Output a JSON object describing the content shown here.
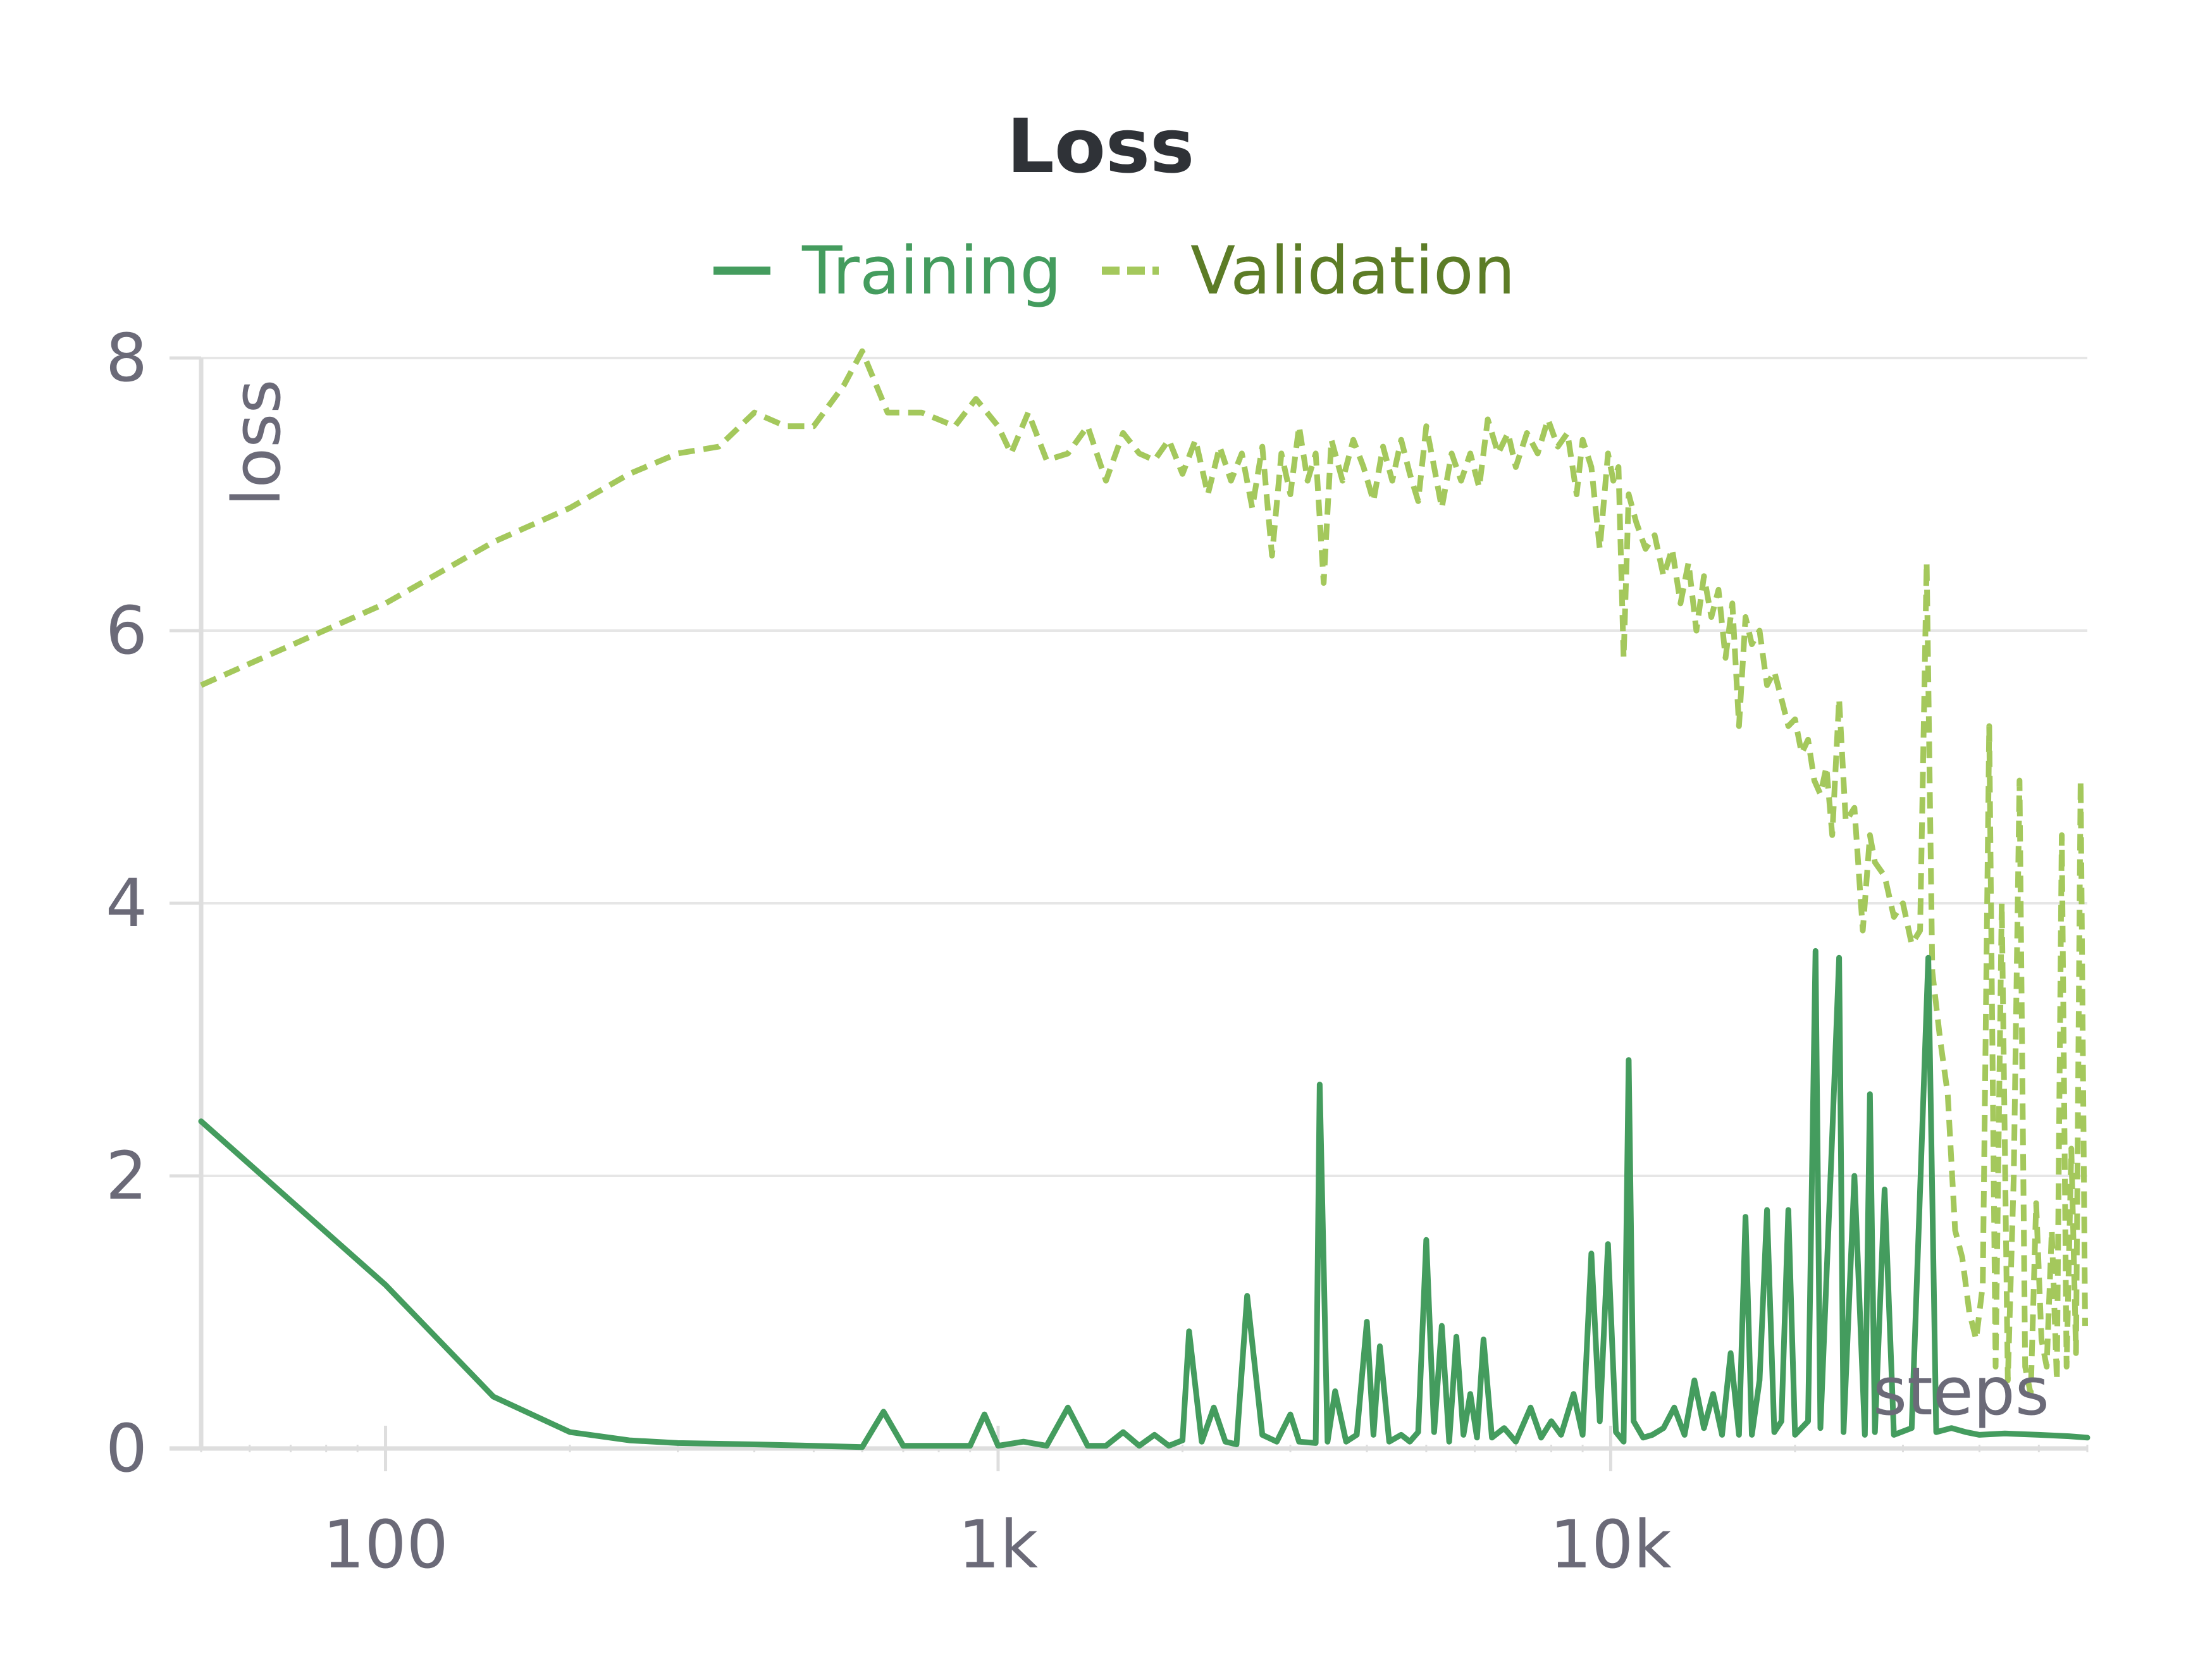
{
  "chart_data": {
    "type": "line",
    "title": "Loss",
    "xlabel": "steps",
    "ylabel": "loss",
    "x_scale": "log",
    "xlim": [
      50,
      60000
    ],
    "ylim": [
      0,
      8
    ],
    "x_ticks": [
      {
        "value": 100,
        "label": "100"
      },
      {
        "value": 1000,
        "label": "1k"
      },
      {
        "value": 10000,
        "label": "10k"
      }
    ],
    "y_ticks": [
      {
        "value": 0,
        "label": "0"
      },
      {
        "value": 2,
        "label": "2"
      },
      {
        "value": 4,
        "label": "4"
      },
      {
        "value": 6,
        "label": "6"
      },
      {
        "value": 8,
        "label": "8"
      }
    ],
    "grid": "horizontal",
    "legend_position": "top-center",
    "colors": {
      "training": "#449c5e",
      "validation": "#a4c85c",
      "grid": "#e6e6e6",
      "axis": "#dedede",
      "text": "#6b6a78",
      "title": "#2f3237"
    },
    "series": [
      {
        "name": "Training",
        "style": "solid",
        "points": [
          [
            50,
            2.4
          ],
          [
            100,
            1.2
          ],
          [
            150,
            0.38
          ],
          [
            200,
            0.12
          ],
          [
            250,
            0.06
          ],
          [
            300,
            0.04
          ],
          [
            400,
            0.03
          ],
          [
            500,
            0.02
          ],
          [
            600,
            0.01
          ],
          [
            650,
            0.27
          ],
          [
            700,
            0.02
          ],
          [
            900,
            0.02
          ],
          [
            950,
            0.25
          ],
          [
            1000,
            0.02
          ],
          [
            1100,
            0.05
          ],
          [
            1200,
            0.02
          ],
          [
            1300,
            0.3
          ],
          [
            1400,
            0.02
          ],
          [
            1500,
            0.02
          ],
          [
            1600,
            0.12
          ],
          [
            1700,
            0.02
          ],
          [
            1800,
            0.1
          ],
          [
            1900,
            0.02
          ],
          [
            2000,
            0.06
          ],
          [
            2050,
            0.86
          ],
          [
            2150,
            0.05
          ],
          [
            2250,
            0.3
          ],
          [
            2350,
            0.05
          ],
          [
            2450,
            0.03
          ],
          [
            2550,
            1.12
          ],
          [
            2700,
            0.1
          ],
          [
            2850,
            0.05
          ],
          [
            3000,
            0.25
          ],
          [
            3100,
            0.05
          ],
          [
            3300,
            0.04
          ],
          [
            3350,
            2.67
          ],
          [
            3450,
            0.05
          ],
          [
            3550,
            0.42
          ],
          [
            3700,
            0.05
          ],
          [
            3850,
            0.1
          ],
          [
            4000,
            0.93
          ],
          [
            4100,
            0.1
          ],
          [
            4200,
            0.75
          ],
          [
            4350,
            0.05
          ],
          [
            4550,
            0.1
          ],
          [
            4700,
            0.05
          ],
          [
            4850,
            0.12
          ],
          [
            5000,
            1.53
          ],
          [
            5150,
            0.12
          ],
          [
            5300,
            0.9
          ],
          [
            5450,
            0.05
          ],
          [
            5600,
            0.82
          ],
          [
            5750,
            0.1
          ],
          [
            5900,
            0.4
          ],
          [
            6050,
            0.08
          ],
          [
            6200,
            0.8
          ],
          [
            6400,
            0.08
          ],
          [
            6700,
            0.15
          ],
          [
            7000,
            0.05
          ],
          [
            7400,
            0.3
          ],
          [
            7700,
            0.08
          ],
          [
            8000,
            0.2
          ],
          [
            8300,
            0.1
          ],
          [
            8700,
            0.4
          ],
          [
            9000,
            0.1
          ],
          [
            9300,
            1.43
          ],
          [
            9600,
            0.2
          ],
          [
            9900,
            1.5
          ],
          [
            10200,
            0.12
          ],
          [
            10500,
            0.05
          ],
          [
            10700,
            2.85
          ],
          [
            10900,
            0.2
          ],
          [
            11300,
            0.08
          ],
          [
            11700,
            0.1
          ],
          [
            12200,
            0.15
          ],
          [
            12700,
            0.3
          ],
          [
            13200,
            0.1
          ],
          [
            13700,
            0.5
          ],
          [
            14200,
            0.15
          ],
          [
            14700,
            0.4
          ],
          [
            15200,
            0.1
          ],
          [
            15700,
            0.7
          ],
          [
            16200,
            0.1
          ],
          [
            16600,
            1.7
          ],
          [
            17000,
            0.1
          ],
          [
            17500,
            0.5
          ],
          [
            18000,
            1.75
          ],
          [
            18500,
            0.12
          ],
          [
            19000,
            0.2
          ],
          [
            19500,
            1.75
          ],
          [
            20000,
            0.1
          ],
          [
            21000,
            0.2
          ],
          [
            21600,
            3.65
          ],
          [
            22000,
            0.15
          ],
          [
            23000,
            2.3
          ],
          [
            23600,
            3.6
          ],
          [
            24000,
            0.12
          ],
          [
            25000,
            2.0
          ],
          [
            26000,
            0.1
          ],
          [
            26500,
            2.6
          ],
          [
            27000,
            0.12
          ],
          [
            28000,
            1.9
          ],
          [
            29000,
            0.1
          ],
          [
            31000,
            0.15
          ],
          [
            33000,
            3.6
          ],
          [
            34000,
            0.12
          ],
          [
            36000,
            0.15
          ],
          [
            38000,
            0.12
          ],
          [
            40000,
            0.1
          ],
          [
            44000,
            0.11
          ],
          [
            50000,
            0.1
          ],
          [
            56000,
            0.09
          ],
          [
            60000,
            0.08
          ]
        ]
      },
      {
        "name": "Validation",
        "style": "dashed",
        "points": [
          [
            50,
            5.6
          ],
          [
            100,
            6.2
          ],
          [
            150,
            6.65
          ],
          [
            200,
            6.9
          ],
          [
            250,
            7.15
          ],
          [
            300,
            7.3
          ],
          [
            350,
            7.35
          ],
          [
            400,
            7.6
          ],
          [
            450,
            7.5
          ],
          [
            500,
            7.5
          ],
          [
            560,
            7.8
          ],
          [
            600,
            8.05
          ],
          [
            660,
            7.6
          ],
          [
            750,
            7.6
          ],
          [
            850,
            7.5
          ],
          [
            920,
            7.7
          ],
          [
            1000,
            7.5
          ],
          [
            1050,
            7.3
          ],
          [
            1120,
            7.6
          ],
          [
            1200,
            7.25
          ],
          [
            1300,
            7.3
          ],
          [
            1400,
            7.5
          ],
          [
            1500,
            7.1
          ],
          [
            1600,
            7.45
          ],
          [
            1700,
            7.3
          ],
          [
            1800,
            7.25
          ],
          [
            1900,
            7.4
          ],
          [
            2000,
            7.15
          ],
          [
            2100,
            7.4
          ],
          [
            2200,
            7.0
          ],
          [
            2300,
            7.35
          ],
          [
            2400,
            7.1
          ],
          [
            2500,
            7.3
          ],
          [
            2600,
            6.9
          ],
          [
            2700,
            7.35
          ],
          [
            2800,
            6.55
          ],
          [
            2900,
            7.3
          ],
          [
            3000,
            7.0
          ],
          [
            3100,
            7.5
          ],
          [
            3200,
            7.1
          ],
          [
            3300,
            7.3
          ],
          [
            3400,
            6.35
          ],
          [
            3500,
            7.4
          ],
          [
            3650,
            7.1
          ],
          [
            3800,
            7.4
          ],
          [
            3950,
            7.2
          ],
          [
            4100,
            6.95
          ],
          [
            4250,
            7.35
          ],
          [
            4400,
            7.1
          ],
          [
            4550,
            7.4
          ],
          [
            4700,
            7.15
          ],
          [
            4850,
            6.95
          ],
          [
            5000,
            7.5
          ],
          [
            5150,
            7.2
          ],
          [
            5300,
            6.9
          ],
          [
            5500,
            7.3
          ],
          [
            5700,
            7.1
          ],
          [
            5900,
            7.3
          ],
          [
            6100,
            7.05
          ],
          [
            6300,
            7.55
          ],
          [
            6550,
            7.3
          ],
          [
            6800,
            7.45
          ],
          [
            7000,
            7.2
          ],
          [
            7300,
            7.45
          ],
          [
            7600,
            7.3
          ],
          [
            7900,
            7.55
          ],
          [
            8200,
            7.35
          ],
          [
            8500,
            7.45
          ],
          [
            8800,
            7.0
          ],
          [
            9000,
            7.4
          ],
          [
            9300,
            7.2
          ],
          [
            9600,
            6.6
          ],
          [
            9900,
            7.3
          ],
          [
            10100,
            7.1
          ],
          [
            10300,
            7.2
          ],
          [
            10500,
            5.8
          ],
          [
            10700,
            7.0
          ],
          [
            11000,
            6.8
          ],
          [
            11400,
            6.6
          ],
          [
            11800,
            6.7
          ],
          [
            12200,
            6.4
          ],
          [
            12600,
            6.6
          ],
          [
            13000,
            6.2
          ],
          [
            13400,
            6.5
          ],
          [
            13800,
            6.0
          ],
          [
            14200,
            6.4
          ],
          [
            14600,
            6.1
          ],
          [
            15000,
            6.3
          ],
          [
            15400,
            5.8
          ],
          [
            15800,
            6.2
          ],
          [
            16200,
            5.3
          ],
          [
            16600,
            6.1
          ],
          [
            17000,
            5.9
          ],
          [
            17500,
            6.0
          ],
          [
            18000,
            5.6
          ],
          [
            18500,
            5.7
          ],
          [
            19000,
            5.5
          ],
          [
            19500,
            5.3
          ],
          [
            20000,
            5.35
          ],
          [
            20500,
            5.1
          ],
          [
            21000,
            5.2
          ],
          [
            21500,
            4.9
          ],
          [
            22000,
            4.8
          ],
          [
            22500,
            5.0
          ],
          [
            23000,
            4.5
          ],
          [
            23600,
            5.5
          ],
          [
            24200,
            4.6
          ],
          [
            25000,
            4.7
          ],
          [
            25800,
            3.8
          ],
          [
            26500,
            4.5
          ],
          [
            27000,
            4.3
          ],
          [
            28000,
            4.2
          ],
          [
            29000,
            3.9
          ],
          [
            30000,
            4.0
          ],
          [
            31000,
            3.7
          ],
          [
            32000,
            3.8
          ],
          [
            32800,
            6.5
          ],
          [
            33500,
            3.5
          ],
          [
            34500,
            3.0
          ],
          [
            35500,
            2.6
          ],
          [
            36500,
            1.6
          ],
          [
            37500,
            1.4
          ],
          [
            38500,
            1.0
          ],
          [
            39500,
            0.8
          ],
          [
            40500,
            1.2
          ],
          [
            41500,
            5.3
          ],
          [
            42500,
            0.6
          ],
          [
            43500,
            4.0
          ],
          [
            44500,
            0.5
          ],
          [
            45500,
            2.0
          ],
          [
            46500,
            4.9
          ],
          [
            47500,
            0.6
          ],
          [
            48500,
            0.4
          ],
          [
            49500,
            1.8
          ],
          [
            50500,
            0.8
          ],
          [
            51500,
            0.6
          ],
          [
            52500,
            1.6
          ],
          [
            53500,
            0.5
          ],
          [
            54500,
            4.5
          ],
          [
            55500,
            0.6
          ],
          [
            56500,
            2.2
          ],
          [
            57500,
            0.7
          ],
          [
            58500,
            4.9
          ],
          [
            59500,
            0.9
          ]
        ]
      }
    ]
  }
}
